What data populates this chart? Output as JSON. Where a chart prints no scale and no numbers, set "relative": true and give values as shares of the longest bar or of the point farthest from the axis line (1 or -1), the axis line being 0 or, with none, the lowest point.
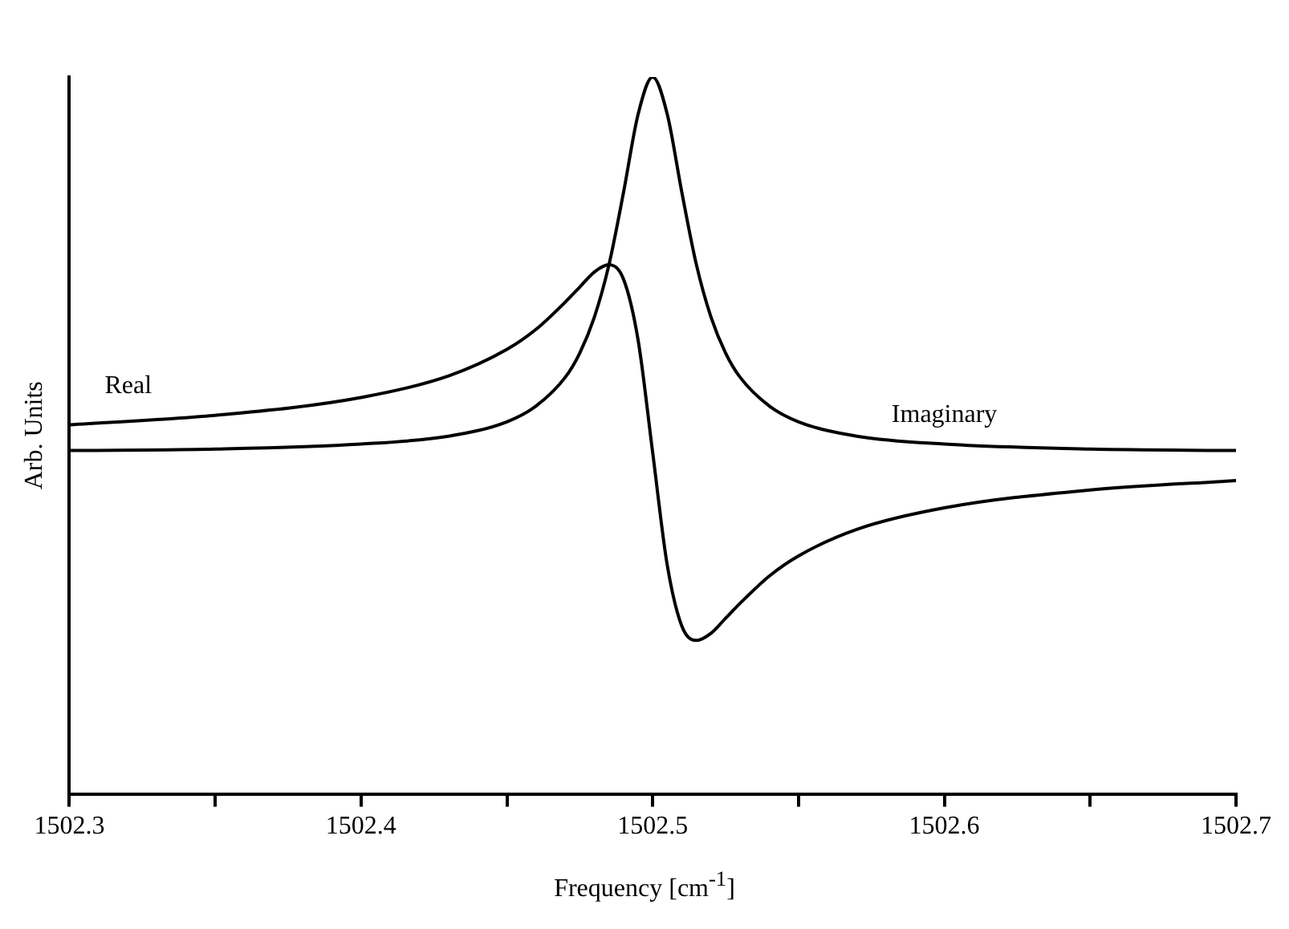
{
  "chart_data": {
    "type": "line",
    "relative": true,
    "xlabel": "Frequency [cm$^{-1}$]",
    "ylabel": "Arb. Units",
    "x": [
      1502.3,
      1502.35,
      1502.4,
      1502.43,
      1502.45,
      1502.46,
      1502.47,
      1502.475,
      1502.48,
      1502.485,
      1502.49,
      1502.495,
      1502.5,
      1502.505,
      1502.51,
      1502.515,
      1502.52,
      1502.525,
      1502.53,
      1502.54,
      1502.55,
      1502.57,
      1502.6,
      1502.65,
      1502.7
    ],
    "series": [
      {
        "name": "Real",
        "color": "#000000",
        "values": [
          0.515,
          0.528,
          0.553,
          0.583,
          0.62,
          0.648,
          0.686,
          0.707,
          0.728,
          0.738,
          0.718,
          0.633,
          0.476,
          0.319,
          0.234,
          0.214,
          0.224,
          0.245,
          0.266,
          0.304,
          0.332,
          0.369,
          0.399,
          0.424,
          0.437
        ]
      },
      {
        "name": "Imaginary",
        "color": "#000000",
        "values": [
          0.479,
          0.481,
          0.488,
          0.499,
          0.519,
          0.541,
          0.581,
          0.615,
          0.665,
          0.738,
          0.839,
          0.948,
          1.0,
          0.948,
          0.839,
          0.738,
          0.665,
          0.615,
          0.581,
          0.541,
          0.519,
          0.499,
          0.488,
          0.481,
          0.479
        ]
      }
    ],
    "xlim": [
      1502.3,
      1502.7
    ],
    "xticks": [
      1502.3,
      {
        "value": 1502.35,
        "label": null
      },
      1502.4,
      {
        "value": 1502.45,
        "label": null
      },
      1502.5,
      {
        "value": 1502.55,
        "label": null
      },
      1502.6,
      {
        "value": 1502.65,
        "label": null
      },
      1502.7
    ],
    "grid": false,
    "legend": false,
    "marker": "none",
    "line_style": "solid"
  }
}
